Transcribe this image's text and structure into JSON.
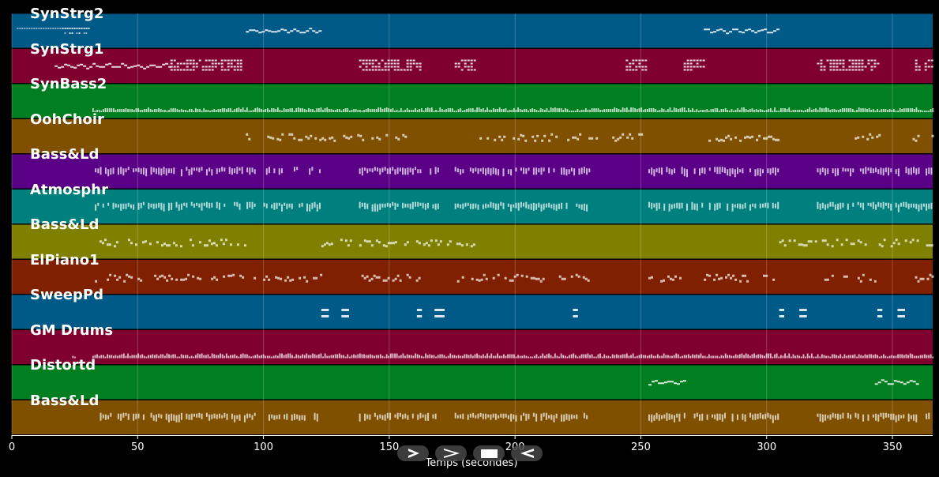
{
  "player": {
    "tracks": [
      {
        "name": "SynStrg2",
        "color": "#005a87"
      },
      {
        "name": "SynStrg1",
        "color": "#7f002f"
      },
      {
        "name": "SynBass2",
        "color": "#007f20"
      },
      {
        "name": "OohChoir",
        "color": "#7f5000"
      },
      {
        "name": "Bass&Ld",
        "color": "#5a0087"
      },
      {
        "name": "Atmosphr",
        "color": "#007f7f"
      },
      {
        "name": "Bass&Ld",
        "color": "#7f7f00"
      },
      {
        "name": "ElPiano1",
        "color": "#7f2000"
      },
      {
        "name": "SweepPd",
        "color": "#005a87"
      },
      {
        "name": "GM Drums",
        "color": "#7f002f"
      },
      {
        "name": "Distortd",
        "color": "#007f20"
      },
      {
        "name": "Bass&Ld",
        "color": "#7f5000"
      }
    ],
    "x_axis": {
      "label": "Temps (secondes)",
      "range": [
        0,
        366
      ],
      "ticks": [
        "0",
        "50",
        "100",
        "150",
        "200",
        "250",
        "300",
        "350"
      ],
      "tick_values": [
        0,
        50,
        100,
        150,
        200,
        250,
        300,
        350
      ]
    },
    "controls": [
      {
        "name": "play-icon"
      },
      {
        "name": "forward-icon"
      },
      {
        "name": "stop-icon"
      },
      {
        "name": "rewind-icon"
      }
    ],
    "note_segments": [
      [
        [
          2,
          31,
          "d"
        ],
        [
          20,
          31,
          "d"
        ],
        [
          93,
          123,
          "w"
        ],
        [
          275,
          305,
          "w"
        ]
      ],
      [
        [
          17,
          63,
          "w"
        ],
        [
          63,
          93,
          "b"
        ],
        [
          138,
          162,
          "b"
        ],
        [
          176,
          184,
          "b"
        ],
        [
          244,
          252,
          "b"
        ],
        [
          267,
          275,
          "b"
        ],
        [
          320,
          344,
          "b"
        ],
        [
          359,
          366,
          "b"
        ]
      ],
      [
        [
          32,
          366,
          "t"
        ]
      ],
      [
        [
          93,
          160,
          "s"
        ],
        [
          184,
          250,
          "s"
        ],
        [
          275,
          305,
          "s"
        ],
        [
          335,
          345,
          "s"
        ],
        [
          358,
          366,
          "s"
        ]
      ],
      [
        [
          33,
          97,
          "m"
        ],
        [
          100,
          123,
          "m"
        ],
        [
          138,
          170,
          "m"
        ],
        [
          176,
          230,
          "m"
        ],
        [
          253,
          305,
          "m"
        ],
        [
          320,
          366,
          "m"
        ]
      ],
      [
        [
          33,
          97,
          "m"
        ],
        [
          100,
          123,
          "m"
        ],
        [
          138,
          170,
          "m"
        ],
        [
          176,
          230,
          "m"
        ],
        [
          253,
          305,
          "m"
        ],
        [
          320,
          366,
          "m"
        ]
      ],
      [
        [
          32,
          93,
          "s"
        ],
        [
          123,
          184,
          "s"
        ],
        [
          305,
          366,
          "s"
        ]
      ],
      [
        [
          33,
          123,
          "s"
        ],
        [
          138,
          162,
          "s"
        ],
        [
          176,
          230,
          "s"
        ],
        [
          253,
          268,
          "s"
        ],
        [
          275,
          305,
          "s"
        ],
        [
          322,
          344,
          "s"
        ],
        [
          358,
          366,
          "s"
        ]
      ],
      [
        [
          123,
          126,
          "k"
        ],
        [
          131,
          134,
          "k"
        ],
        [
          161,
          163,
          "k"
        ],
        [
          168,
          172,
          "k"
        ],
        [
          223,
          225,
          "k"
        ],
        [
          305,
          307,
          "k"
        ],
        [
          313,
          316,
          "k"
        ],
        [
          344,
          346,
          "k"
        ],
        [
          352,
          355,
          "k"
        ]
      ],
      [
        [
          24,
          25,
          "t"
        ],
        [
          32,
          366,
          "t"
        ]
      ],
      [
        [
          253,
          268,
          "w"
        ],
        [
          343,
          360,
          "w"
        ]
      ],
      [
        [
          33,
          97,
          "m"
        ],
        [
          100,
          123,
          "m"
        ],
        [
          138,
          170,
          "m"
        ],
        [
          176,
          230,
          "m"
        ],
        [
          253,
          305,
          "m"
        ],
        [
          320,
          366,
          "m"
        ]
      ]
    ]
  }
}
